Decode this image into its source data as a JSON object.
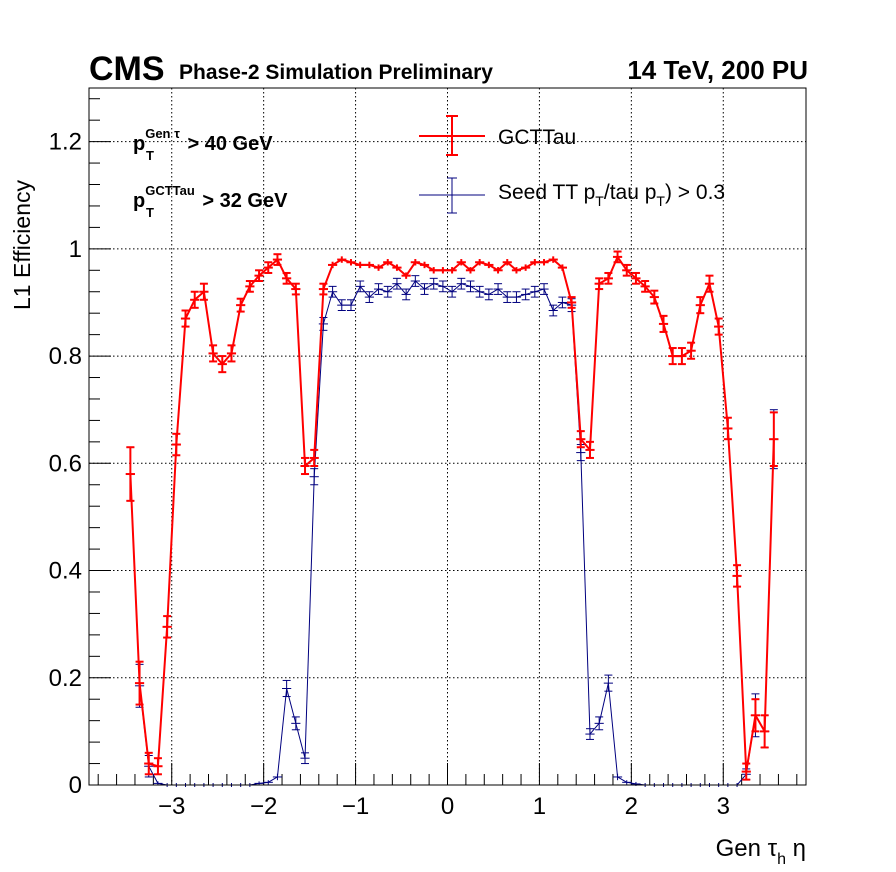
{
  "header": {
    "cms": "CMS",
    "subtitle": "Phase-2 Simulation Preliminary",
    "energy": "14 TeV, 200 PU"
  },
  "cuts": {
    "line1": {
      "p": "p",
      "sub": "T",
      "sup": "Gen τ",
      "rest": " > 40 GeV"
    },
    "line2": {
      "p": "p",
      "sub": "T",
      "sup": "GCTTau",
      "rest": " > 32 GeV"
    }
  },
  "legend": {
    "gcttau": "GCTTau",
    "seed_a": "Seed TT p",
    "seed_sub1": "T",
    "seed_b": "/tau p",
    "seed_sub2": "T",
    "seed_c": ") > 0.3"
  },
  "axes": {
    "ylabel": "L1 Efficiency",
    "xlabel_a": "Gen τ",
    "xlabel_sub": "h",
    "xlabel_b": " η"
  },
  "colors": {
    "gcttau": "#ff0000",
    "seed": "#00007f",
    "frame": "#000000",
    "grid": "#000000"
  },
  "chart_data": {
    "type": "line",
    "xlim": [
      -3.9,
      3.9
    ],
    "ylim": [
      0,
      1.3
    ],
    "x_ticks": [
      -3,
      -2,
      -1,
      0,
      1,
      2,
      3
    ],
    "x_tick_labels": [
      "−3",
      "−2",
      "−1",
      "0",
      "1",
      "2",
      "3"
    ],
    "y_ticks": [
      0,
      0.2,
      0.4,
      0.6,
      0.8,
      1,
      1.2
    ],
    "y_tick_labels": [
      "0",
      "0.2",
      "0.4",
      "0.6",
      "0.8",
      "1",
      "1.2"
    ],
    "grid": true,
    "x_bin_half_width": 0.05,
    "series": [
      {
        "name": "GCTTau",
        "color": "#ff0000",
        "points": [
          [
            -3.45,
            0.58,
            0.05
          ],
          [
            -3.35,
            0.19,
            0.04
          ],
          [
            -3.25,
            0.04,
            0.02
          ],
          [
            -3.15,
            0.035,
            0.015
          ],
          [
            -3.05,
            0.295,
            0.02
          ],
          [
            -2.95,
            0.635,
            0.02
          ],
          [
            -2.85,
            0.87,
            0.015
          ],
          [
            -2.75,
            0.905,
            0.015
          ],
          [
            -2.65,
            0.92,
            0.015
          ],
          [
            -2.55,
            0.805,
            0.015
          ],
          [
            -2.45,
            0.785,
            0.015
          ],
          [
            -2.35,
            0.805,
            0.015
          ],
          [
            -2.25,
            0.895,
            0.012
          ],
          [
            -2.15,
            0.93,
            0.01
          ],
          [
            -2.05,
            0.95,
            0.01
          ],
          [
            -1.95,
            0.965,
            0.01
          ],
          [
            -1.85,
            0.98,
            0.01
          ],
          [
            -1.75,
            0.945,
            0.01
          ],
          [
            -1.65,
            0.925,
            0.01
          ],
          [
            -1.55,
            0.595,
            0.015
          ],
          [
            -1.45,
            0.61,
            0.015
          ],
          [
            -1.35,
            0.925,
            0.01
          ],
          [
            -1.25,
            0.97,
            0.006
          ],
          [
            -1.15,
            0.98,
            0.006
          ],
          [
            -1.05,
            0.975,
            0.006
          ],
          [
            -0.95,
            0.97,
            0.006
          ],
          [
            -0.85,
            0.97,
            0.006
          ],
          [
            -0.75,
            0.965,
            0.006
          ],
          [
            -0.65,
            0.975,
            0.006
          ],
          [
            -0.55,
            0.965,
            0.006
          ],
          [
            -0.45,
            0.95,
            0.006
          ],
          [
            -0.35,
            0.975,
            0.006
          ],
          [
            -0.25,
            0.97,
            0.006
          ],
          [
            -0.15,
            0.96,
            0.006
          ],
          [
            -0.05,
            0.96,
            0.006
          ],
          [
            0.05,
            0.96,
            0.006
          ],
          [
            0.15,
            0.975,
            0.006
          ],
          [
            0.25,
            0.96,
            0.006
          ],
          [
            0.35,
            0.975,
            0.006
          ],
          [
            0.45,
            0.97,
            0.006
          ],
          [
            0.55,
            0.96,
            0.006
          ],
          [
            0.65,
            0.975,
            0.006
          ],
          [
            0.75,
            0.96,
            0.006
          ],
          [
            0.85,
            0.965,
            0.006
          ],
          [
            0.95,
            0.975,
            0.006
          ],
          [
            1.05,
            0.975,
            0.006
          ],
          [
            1.15,
            0.98,
            0.006
          ],
          [
            1.25,
            0.965,
            0.006
          ],
          [
            1.35,
            0.9,
            0.01
          ],
          [
            1.45,
            0.645,
            0.015
          ],
          [
            1.55,
            0.625,
            0.015
          ],
          [
            1.65,
            0.935,
            0.01
          ],
          [
            1.75,
            0.945,
            0.01
          ],
          [
            1.85,
            0.985,
            0.01
          ],
          [
            1.95,
            0.96,
            0.01
          ],
          [
            2.05,
            0.945,
            0.01
          ],
          [
            2.15,
            0.93,
            0.01
          ],
          [
            2.25,
            0.91,
            0.012
          ],
          [
            2.35,
            0.86,
            0.015
          ],
          [
            2.45,
            0.8,
            0.015
          ],
          [
            2.55,
            0.8,
            0.015
          ],
          [
            2.65,
            0.81,
            0.015
          ],
          [
            2.75,
            0.895,
            0.015
          ],
          [
            2.85,
            0.935,
            0.015
          ],
          [
            2.95,
            0.855,
            0.015
          ],
          [
            3.05,
            0.665,
            0.02
          ],
          [
            3.15,
            0.39,
            0.02
          ],
          [
            3.25,
            0.025,
            0.015
          ],
          [
            3.35,
            0.13,
            0.03
          ],
          [
            3.45,
            0.1,
            0.03
          ],
          [
            3.55,
            0.645,
            0.05
          ]
        ]
      },
      {
        "name": "Seed TT pT/tau pT) > 0.3",
        "color": "#00007f",
        "points": [
          [
            -3.45,
            0.58,
            0.05
          ],
          [
            -3.35,
            0.185,
            0.04
          ],
          [
            -3.25,
            0.035,
            0.02
          ],
          [
            -3.15,
            0.003,
            0.003
          ],
          [
            -3.05,
            0.0,
            0.002
          ],
          [
            -2.95,
            0.0,
            0.002
          ],
          [
            -2.85,
            0.0,
            0.002
          ],
          [
            -2.75,
            0.0,
            0.002
          ],
          [
            -2.65,
            0.0,
            0.002
          ],
          [
            -2.55,
            0.0,
            0.002
          ],
          [
            -2.45,
            0.0,
            0.002
          ],
          [
            -2.35,
            0.0,
            0.002
          ],
          [
            -2.25,
            0.0,
            0.002
          ],
          [
            -2.15,
            0.0,
            0.002
          ],
          [
            -2.05,
            0.003,
            0.003
          ],
          [
            -1.95,
            0.005,
            0.004
          ],
          [
            -1.85,
            0.015,
            0.006
          ],
          [
            -1.75,
            0.18,
            0.015
          ],
          [
            -1.65,
            0.115,
            0.012
          ],
          [
            -1.55,
            0.05,
            0.01
          ],
          [
            -1.45,
            0.575,
            0.015
          ],
          [
            -1.35,
            0.86,
            0.012
          ],
          [
            -1.25,
            0.92,
            0.01
          ],
          [
            -1.15,
            0.895,
            0.01
          ],
          [
            -1.05,
            0.895,
            0.01
          ],
          [
            -0.95,
            0.93,
            0.01
          ],
          [
            -0.85,
            0.91,
            0.01
          ],
          [
            -0.75,
            0.925,
            0.01
          ],
          [
            -0.65,
            0.92,
            0.01
          ],
          [
            -0.55,
            0.935,
            0.01
          ],
          [
            -0.45,
            0.915,
            0.01
          ],
          [
            -0.35,
            0.94,
            0.01
          ],
          [
            -0.25,
            0.925,
            0.01
          ],
          [
            -0.15,
            0.935,
            0.01
          ],
          [
            -0.05,
            0.93,
            0.01
          ],
          [
            0.05,
            0.92,
            0.01
          ],
          [
            0.15,
            0.935,
            0.01
          ],
          [
            0.25,
            0.93,
            0.01
          ],
          [
            0.35,
            0.92,
            0.01
          ],
          [
            0.45,
            0.915,
            0.01
          ],
          [
            0.55,
            0.925,
            0.01
          ],
          [
            0.65,
            0.91,
            0.01
          ],
          [
            0.75,
            0.91,
            0.01
          ],
          [
            0.85,
            0.915,
            0.01
          ],
          [
            0.95,
            0.92,
            0.01
          ],
          [
            1.05,
            0.925,
            0.01
          ],
          [
            1.15,
            0.885,
            0.01
          ],
          [
            1.25,
            0.9,
            0.01
          ],
          [
            1.35,
            0.895,
            0.012
          ],
          [
            1.45,
            0.62,
            0.015
          ],
          [
            1.55,
            0.095,
            0.01
          ],
          [
            1.65,
            0.115,
            0.012
          ],
          [
            1.75,
            0.19,
            0.015
          ],
          [
            1.85,
            0.015,
            0.006
          ],
          [
            1.95,
            0.005,
            0.004
          ],
          [
            2.05,
            0.002,
            0.003
          ],
          [
            2.15,
            0.0,
            0.002
          ],
          [
            2.25,
            0.0,
            0.002
          ],
          [
            2.35,
            0.0,
            0.002
          ],
          [
            2.45,
            0.0,
            0.002
          ],
          [
            2.55,
            0.0,
            0.002
          ],
          [
            2.65,
            0.0,
            0.002
          ],
          [
            2.75,
            0.0,
            0.002
          ],
          [
            2.85,
            0.0,
            0.002
          ],
          [
            2.95,
            0.0,
            0.002
          ],
          [
            3.05,
            0.0,
            0.002
          ],
          [
            3.15,
            0.0,
            0.002
          ],
          [
            3.25,
            0.02,
            0.01
          ],
          [
            3.35,
            0.13,
            0.04
          ],
          [
            3.45,
            0.1,
            0.03
          ],
          [
            3.55,
            0.645,
            0.055
          ]
        ]
      }
    ]
  }
}
